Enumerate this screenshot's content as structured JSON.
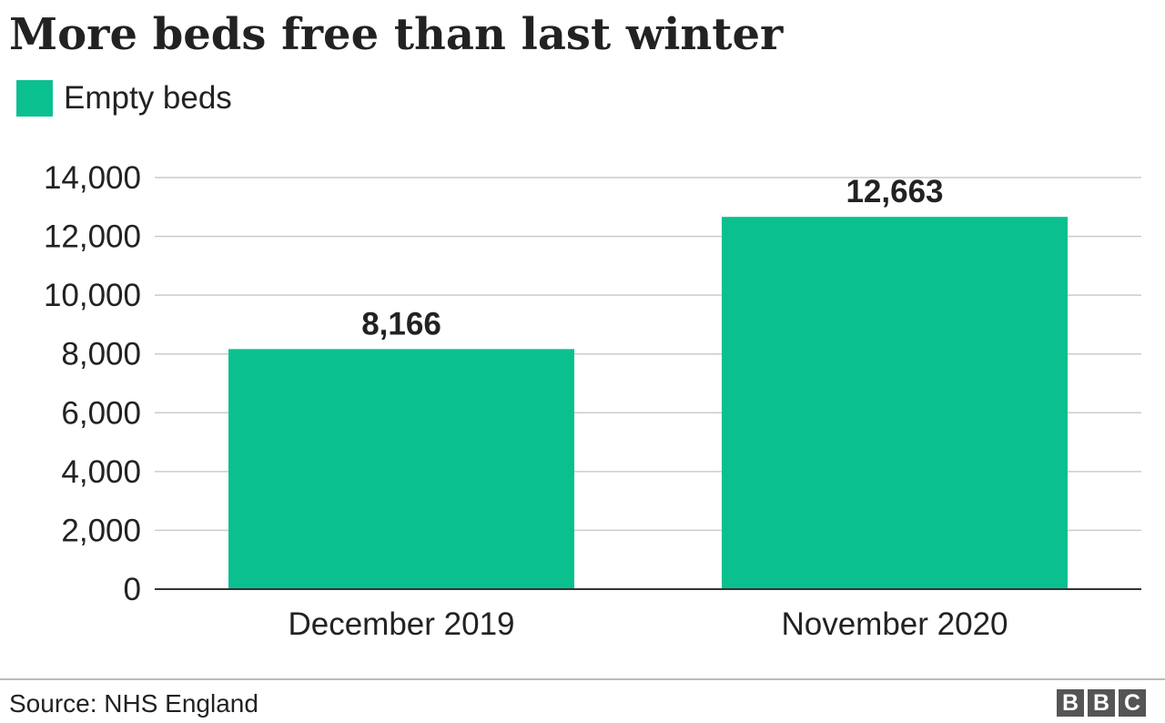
{
  "title": "More beds free than last winter",
  "legend": {
    "label": "Empty beds",
    "color": "#0bc08f"
  },
  "chart_data": {
    "type": "bar",
    "categories": [
      "December 2019",
      "November 2020"
    ],
    "series": [
      {
        "name": "Empty beds",
        "values": [
          8166,
          12663
        ],
        "data_labels": [
          "8,166",
          "12,663"
        ]
      }
    ],
    "yticks": [
      "0",
      "2,000",
      "4,000",
      "6,000",
      "8,000",
      "10,000",
      "12,000",
      "14,000"
    ],
    "ylim": [
      0,
      14000
    ],
    "grid": true,
    "legend_position": "top-left",
    "xlabel": "",
    "ylabel": ""
  },
  "source": "Source: NHS England",
  "logo": {
    "letters": [
      "B",
      "B",
      "C"
    ],
    "icon": "bbc-logo-icon"
  }
}
